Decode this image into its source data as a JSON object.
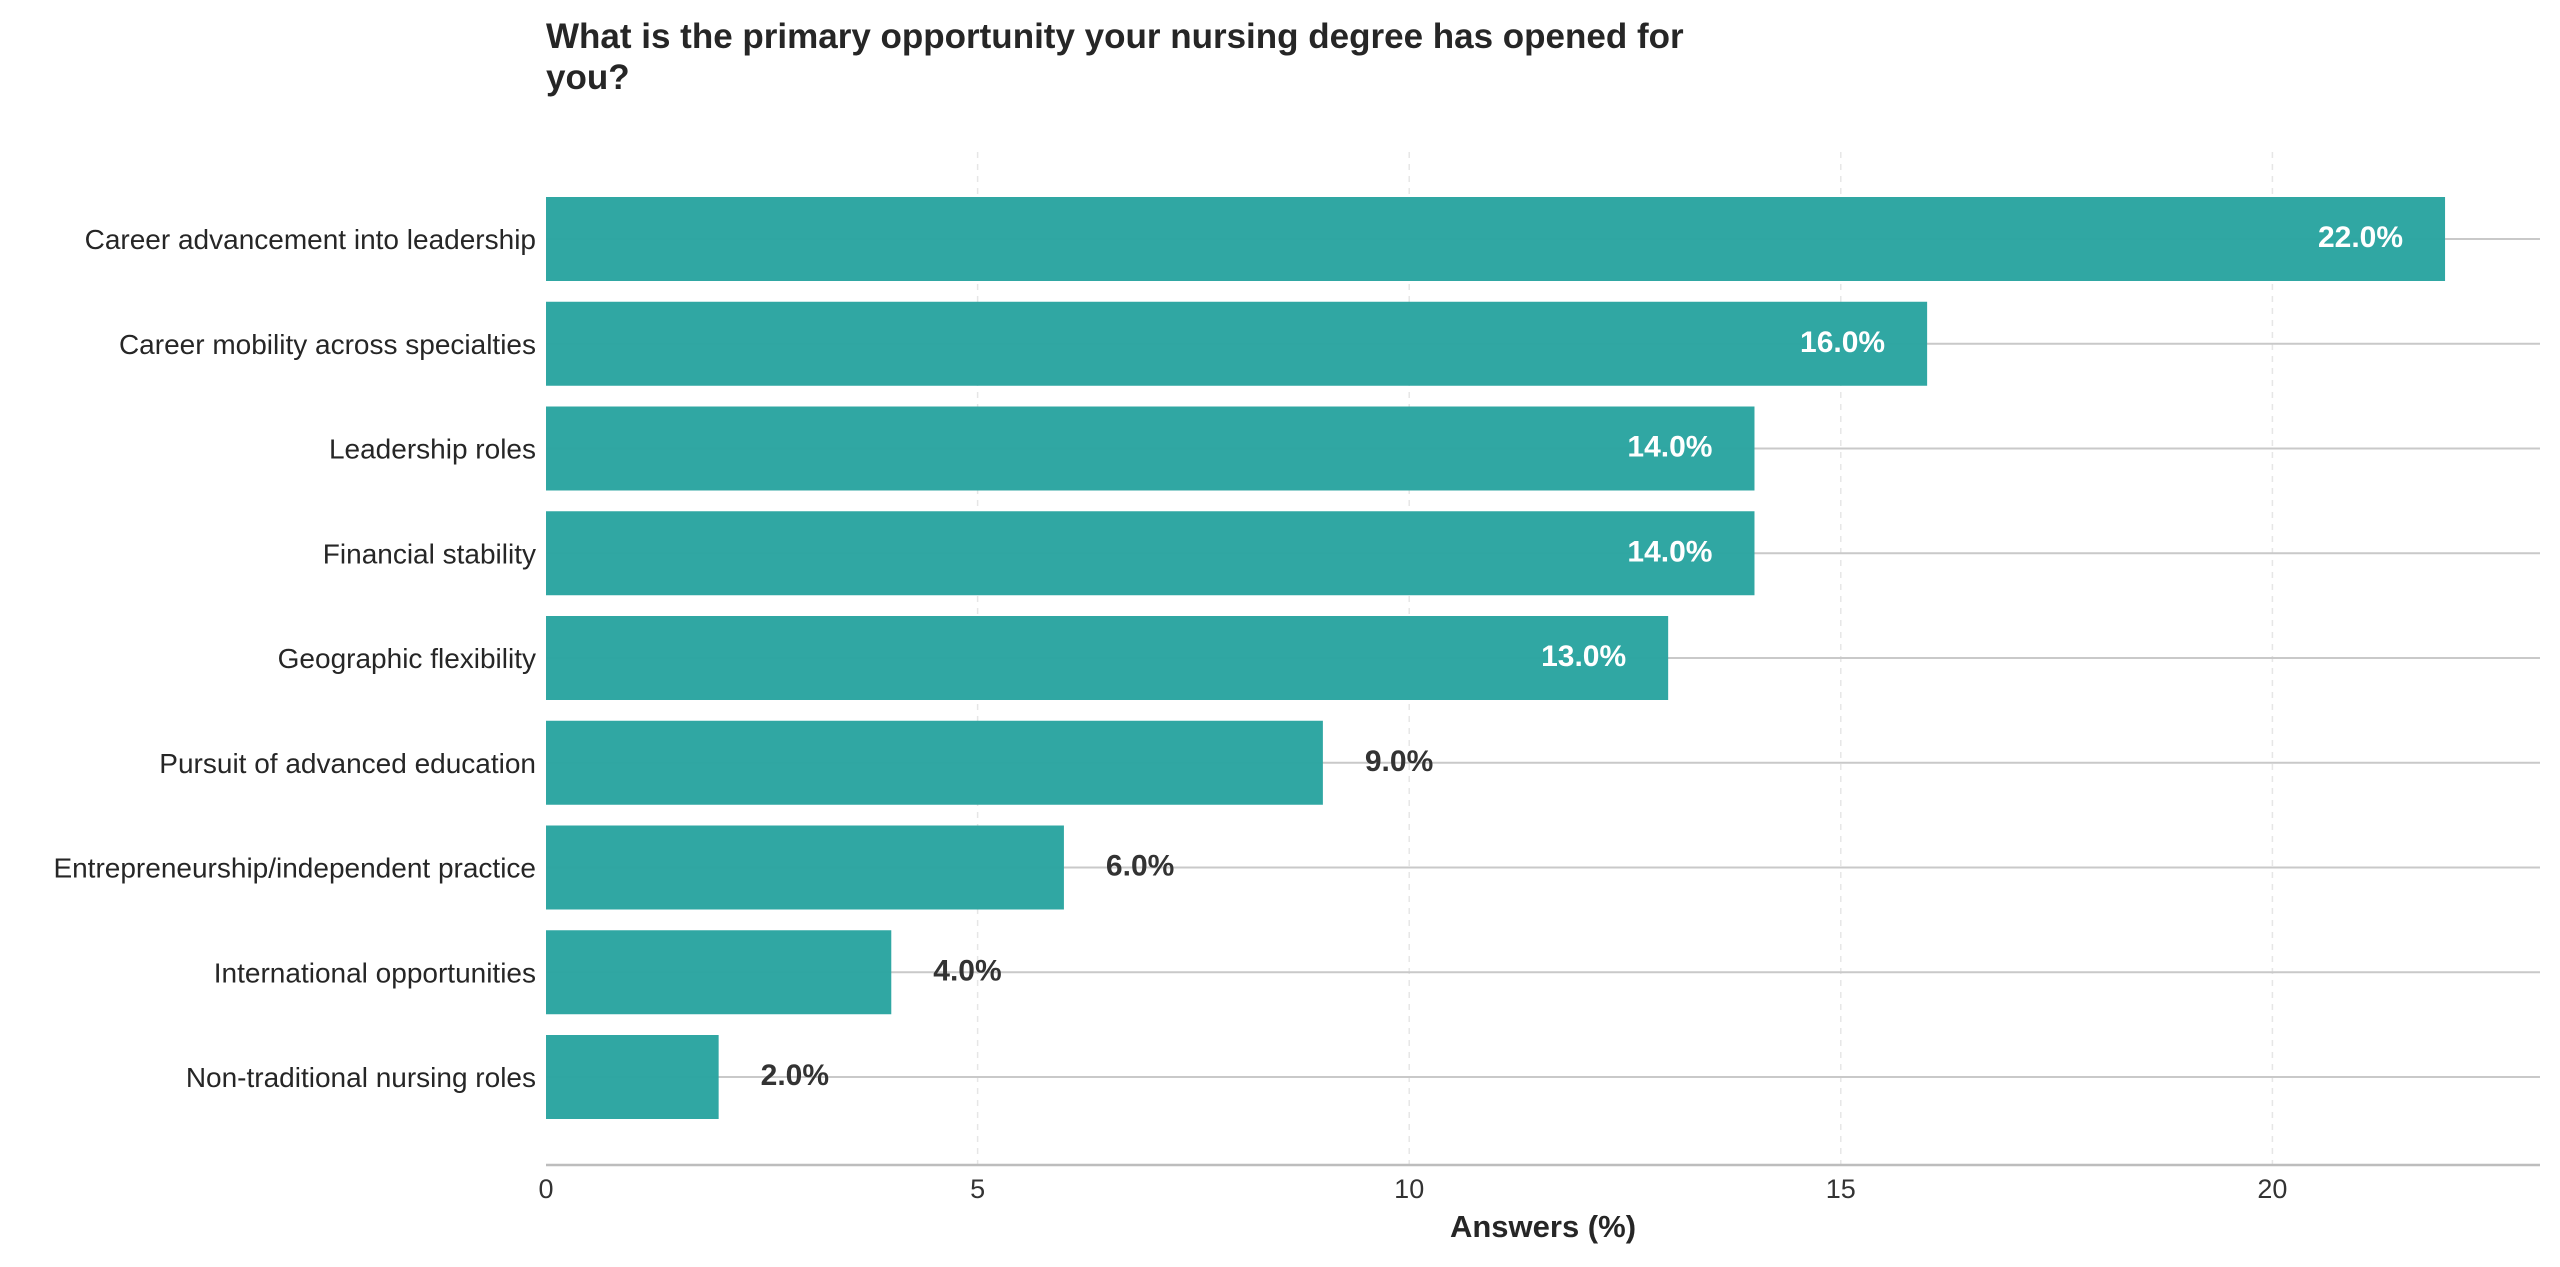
{
  "chart_data": {
    "type": "bar",
    "orientation": "horizontal",
    "title": "What is the primary opportunity your nursing degree has opened for you?",
    "xlabel": "Answers (%)",
    "ylabel": "",
    "categories": [
      "Career advancement into leadership",
      "Career mobility across specialties",
      "Leadership roles",
      "Financial stability",
      "Geographic flexibility",
      "Pursuit of advanced education",
      "Entrepreneurship/independent practice",
      "International opportunities",
      "Non-traditional nursing roles"
    ],
    "values": [
      22.0,
      16.0,
      14.0,
      14.0,
      13.0,
      9.0,
      6.0,
      4.0,
      2.0
    ],
    "value_labels": [
      "22.0%",
      "16.0%",
      "14.0%",
      "14.0%",
      "13.0%",
      "9.0%",
      "6.0%",
      "4.0%",
      "2.0%"
    ],
    "xlim": [
      0,
      23.1
    ],
    "xticks": [
      0,
      5,
      10,
      15,
      20
    ],
    "grid": "x dashed",
    "bar_color": "#2ca5a1",
    "inside_label_color": "#ffffff",
    "outside_label_color": "#333333",
    "inside_label_threshold": 10
  }
}
